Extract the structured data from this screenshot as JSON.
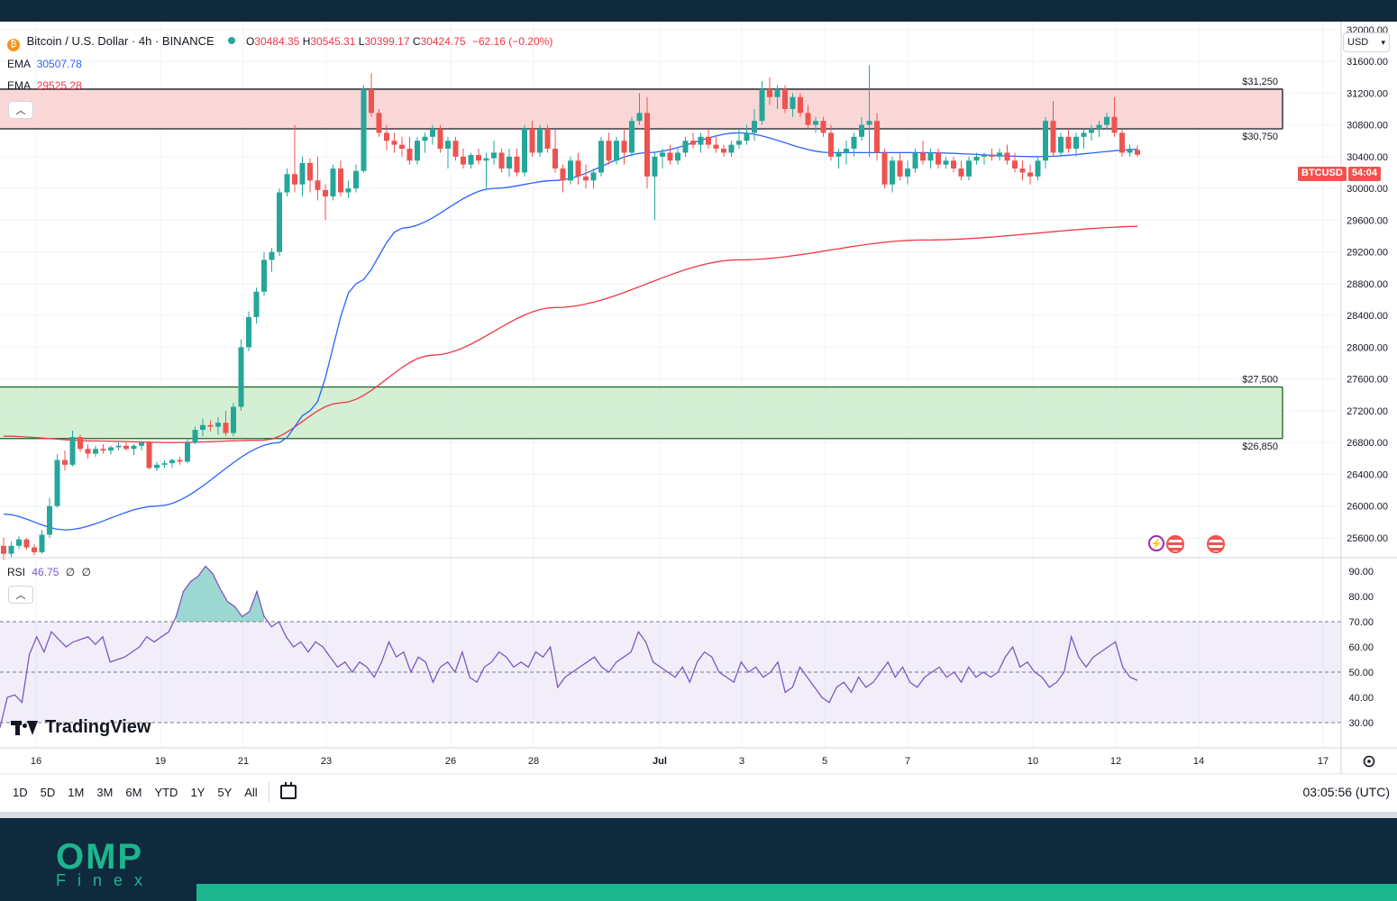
{
  "header": {
    "symbol_title": "Bitcoin / U.S. Dollar · 4h · BINANCE",
    "ohlc": {
      "o_label": "O",
      "o_value": "30484.35",
      "h_label": "H",
      "h_value": "30545.31",
      "l_label": "L",
      "l_value": "30399.17",
      "c_label": "C",
      "c_value": "30424.75",
      "change": "−62.16 (−0.20%)"
    },
    "ema_fast_label": "EMA",
    "ema_fast_value": "30507.78",
    "ema_slow_label": "EMA",
    "ema_slow_value": "29525.28"
  },
  "rsi_legend": {
    "label": "RSI",
    "value": "46.75",
    "extra1": "∅",
    "extra2": "∅"
  },
  "currency": "USD",
  "price_tag": {
    "symbol": "BTCUSD",
    "timer": "54:04"
  },
  "timeframes": [
    "1D",
    "5D",
    "1M",
    "3M",
    "6M",
    "YTD",
    "1Y",
    "5Y",
    "All"
  ],
  "clock": "03:05:56 (UTC)",
  "branding": {
    "tradingview": "TradingView",
    "footer_logo": "OMP",
    "footer_sub": "Finex"
  },
  "colors": {
    "up": "#26a69a",
    "down": "#ef5350",
    "ema_fast": "#2962ff",
    "ema_slow": "#f23645",
    "resistance_fill": "#f9d0d0",
    "support_fill": "#cdeccd",
    "rsi": "#7e57c2",
    "brand": "#1cb68e"
  },
  "chart_data": {
    "type": "candlestick",
    "title": "Bitcoin / U.S. Dollar · 4h · BINANCE",
    "y_ticks": [
      "32000.00",
      "31600.00",
      "31200.00",
      "30800.00",
      "30400.00",
      "30000.00",
      "29600.00",
      "29200.00",
      "28800.00",
      "28400.00",
      "28000.00",
      "27600.00",
      "27200.00",
      "26800.00",
      "26400.00",
      "26000.00",
      "25600.00"
    ],
    "x_ticks": [
      "16",
      "19",
      "21",
      "23",
      "26",
      "28",
      "Jul",
      "3",
      "5",
      "7",
      "10",
      "12",
      "14",
      "17"
    ],
    "zones": [
      {
        "name": "resistance",
        "low": 30750,
        "high": 31250,
        "low_label": "$30,750",
        "high_label": "$31,250"
      },
      {
        "name": "support",
        "low": 26850,
        "high": 27500,
        "low_label": "$26,850",
        "high_label": "$27,500"
      }
    ],
    "candles": [
      [
        25500,
        25600,
        25320,
        25400
      ],
      [
        25400,
        25550,
        25350,
        25500
      ],
      [
        25500,
        25620,
        25460,
        25580
      ],
      [
        25580,
        25600,
        25450,
        25480
      ],
      [
        25480,
        25520,
        25380,
        25420
      ],
      [
        25420,
        25700,
        25400,
        25640
      ],
      [
        25640,
        26100,
        25600,
        26000
      ],
      [
        26000,
        26650,
        25980,
        26580
      ],
      [
        26580,
        26700,
        26450,
        26520
      ],
      [
        26520,
        26950,
        26500,
        26870
      ],
      [
        26870,
        26900,
        26680,
        26720
      ],
      [
        26720,
        26780,
        26600,
        26660
      ],
      [
        26660,
        26760,
        26620,
        26720
      ],
      [
        26720,
        26780,
        26660,
        26700
      ],
      [
        26700,
        26760,
        26650,
        26740
      ],
      [
        26740,
        26800,
        26700,
        26760
      ],
      [
        26760,
        26800,
        26700,
        26720
      ],
      [
        26720,
        26780,
        26640,
        26760
      ],
      [
        26760,
        26820,
        26700,
        26800
      ],
      [
        26800,
        26820,
        26460,
        26480
      ],
      [
        26480,
        26560,
        26440,
        26520
      ],
      [
        26520,
        26580,
        26480,
        26540
      ],
      [
        26540,
        26600,
        26480,
        26580
      ],
      [
        26580,
        26620,
        26520,
        26560
      ],
      [
        26560,
        26840,
        26540,
        26800
      ],
      [
        26800,
        27000,
        26780,
        26960
      ],
      [
        26960,
        27100,
        26880,
        27020
      ],
      [
        27020,
        27080,
        26940,
        27000
      ],
      [
        27000,
        27120,
        26900,
        27050
      ],
      [
        27050,
        27200,
        26880,
        26920
      ],
      [
        26920,
        27300,
        26880,
        27250
      ],
      [
        27250,
        28100,
        27200,
        28000
      ],
      [
        28000,
        28450,
        27950,
        28380
      ],
      [
        28380,
        28750,
        28300,
        28700
      ],
      [
        28700,
        29200,
        28650,
        29100
      ],
      [
        29100,
        29250,
        28950,
        29200
      ],
      [
        29200,
        30000,
        29150,
        29950
      ],
      [
        29950,
        30250,
        29900,
        30180
      ],
      [
        30180,
        30800,
        29950,
        30050
      ],
      [
        30050,
        30400,
        29900,
        30320
      ],
      [
        30320,
        30380,
        29950,
        30100
      ],
      [
        30100,
        30400,
        29850,
        29980
      ],
      [
        29980,
        30050,
        29600,
        29900
      ],
      [
        29900,
        30300,
        29850,
        30250
      ],
      [
        30250,
        30350,
        29900,
        29950
      ],
      [
        29950,
        30100,
        29880,
        30000
      ],
      [
        30000,
        30300,
        29950,
        30220
      ],
      [
        30220,
        31300,
        30200,
        31250
      ],
      [
        31250,
        31450,
        30900,
        30950
      ],
      [
        30950,
        31000,
        30650,
        30700
      ],
      [
        30700,
        30800,
        30480,
        30600
      ],
      [
        30600,
        30700,
        30450,
        30550
      ],
      [
        30550,
        30650,
        30400,
        30500
      ],
      [
        30500,
        30650,
        30300,
        30350
      ],
      [
        30350,
        30650,
        30300,
        30600
      ],
      [
        30600,
        30700,
        30450,
        30650
      ],
      [
        30650,
        30800,
        30550,
        30750
      ],
      [
        30750,
        30800,
        30450,
        30500
      ],
      [
        30500,
        30650,
        30250,
        30600
      ],
      [
        30600,
        30650,
        30350,
        30400
      ],
      [
        30400,
        30500,
        30250,
        30300
      ],
      [
        30300,
        30450,
        30250,
        30420
      ],
      [
        30420,
        30500,
        30300,
        30350
      ],
      [
        30350,
        30450,
        30000,
        30380
      ],
      [
        30380,
        30600,
        30300,
        30450
      ],
      [
        30450,
        30500,
        30200,
        30250
      ],
      [
        30250,
        30500,
        30150,
        30400
      ],
      [
        30400,
        30500,
        30150,
        30200
      ],
      [
        30200,
        30800,
        30150,
        30750
      ],
      [
        30750,
        30850,
        30400,
        30450
      ],
      [
        30450,
        30800,
        30400,
        30750
      ],
      [
        30750,
        30800,
        30450,
        30500
      ],
      [
        30500,
        30750,
        30200,
        30250
      ],
      [
        30250,
        30300,
        29950,
        30100
      ],
      [
        30100,
        30400,
        30050,
        30350
      ],
      [
        30350,
        30450,
        30050,
        30150
      ],
      [
        30150,
        30300,
        30000,
        30100
      ],
      [
        30100,
        30250,
        30000,
        30200
      ],
      [
        30200,
        30650,
        30150,
        30600
      ],
      [
        30600,
        30700,
        30300,
        30350
      ],
      [
        30350,
        30650,
        30300,
        30600
      ],
      [
        30600,
        30750,
        30300,
        30450
      ],
      [
        30450,
        30900,
        30400,
        30850
      ],
      [
        30850,
        31200,
        30800,
        30950
      ],
      [
        30950,
        31150,
        30000,
        30150
      ],
      [
        30150,
        30450,
        29600,
        30400
      ],
      [
        30400,
        30500,
        30250,
        30450
      ],
      [
        30450,
        30550,
        30300,
        30350
      ],
      [
        30350,
        30500,
        30300,
        30450
      ],
      [
        30450,
        30650,
        30400,
        30600
      ],
      [
        30600,
        30700,
        30500,
        30550
      ],
      [
        30550,
        30700,
        30450,
        30650
      ],
      [
        30650,
        30750,
        30500,
        30550
      ],
      [
        30550,
        30650,
        30450,
        30500
      ],
      [
        30500,
        30550,
        30400,
        30450
      ],
      [
        30450,
        30600,
        30400,
        30550
      ],
      [
        30550,
        30750,
        30500,
        30600
      ],
      [
        30600,
        30800,
        30550,
        30700
      ],
      [
        30700,
        31000,
        30600,
        30850
      ],
      [
        30850,
        31350,
        30800,
        31250
      ],
      [
        31250,
        31400,
        31050,
        31150
      ],
      [
        31150,
        31300,
        31000,
        31250
      ],
      [
        31250,
        31300,
        30950,
        31000
      ],
      [
        31000,
        31200,
        30900,
        31150
      ],
      [
        31150,
        31200,
        30900,
        30950
      ],
      [
        30950,
        31050,
        30750,
        30800
      ],
      [
        30800,
        30900,
        30700,
        30850
      ],
      [
        30850,
        30900,
        30650,
        30700
      ],
      [
        30700,
        30800,
        30350,
        30400
      ],
      [
        30400,
        30500,
        30250,
        30450
      ],
      [
        30450,
        30600,
        30300,
        30500
      ],
      [
        30500,
        30700,
        30400,
        30650
      ],
      [
        30650,
        30900,
        30600,
        30800
      ],
      [
        30800,
        31550,
        30400,
        30850
      ],
      [
        30850,
        30950,
        30350,
        30450
      ],
      [
        30450,
        30500,
        30000,
        30050
      ],
      [
        30050,
        30400,
        29950,
        30350
      ],
      [
        30350,
        30450,
        30100,
        30150
      ],
      [
        30150,
        30350,
        30050,
        30250
      ],
      [
        30250,
        30500,
        30200,
        30450
      ],
      [
        30450,
        30600,
        30300,
        30350
      ],
      [
        30350,
        30500,
        30250,
        30450
      ],
      [
        30450,
        30500,
        30250,
        30300
      ],
      [
        30300,
        30400,
        30250,
        30350
      ],
      [
        30350,
        30400,
        30200,
        30250
      ],
      [
        30250,
        30350,
        30100,
        30150
      ],
      [
        30150,
        30400,
        30100,
        30350
      ],
      [
        30350,
        30450,
        30300,
        30400
      ],
      [
        30400,
        30450,
        30300,
        30420
      ],
      [
        30420,
        30500,
        30350,
        30400
      ],
      [
        30400,
        30500,
        30350,
        30450
      ],
      [
        30450,
        30550,
        30300,
        30350
      ],
      [
        30350,
        30450,
        30200,
        30250
      ],
      [
        30250,
        30350,
        30100,
        30200
      ],
      [
        30200,
        30300,
        30050,
        30150
      ],
      [
        30150,
        30400,
        30100,
        30350
      ],
      [
        30350,
        30900,
        30250,
        30850
      ],
      [
        30850,
        31100,
        30400,
        30450
      ],
      [
        30450,
        30700,
        30400,
        30650
      ],
      [
        30650,
        30750,
        30450,
        30500
      ],
      [
        30500,
        30700,
        30400,
        30650
      ],
      [
        30650,
        30750,
        30500,
        30700
      ],
      [
        30700,
        30800,
        30600,
        30750
      ],
      [
        30750,
        30850,
        30650,
        30800
      ],
      [
        30800,
        30950,
        30750,
        30900
      ],
      [
        30900,
        31150,
        30650,
        30700
      ],
      [
        30700,
        30750,
        30400,
        30450
      ],
      [
        30450,
        30550,
        30400,
        30500
      ],
      [
        30484.35,
        30545.31,
        30399.17,
        30424.75
      ]
    ],
    "ema_fast": [
      [
        0,
        25900
      ],
      [
        8,
        25700
      ],
      [
        20,
        26000
      ],
      [
        36,
        26800
      ],
      [
        40,
        27200
      ],
      [
        46,
        28800
      ],
      [
        52,
        29500
      ],
      [
        64,
        30000
      ],
      [
        72,
        30100
      ],
      [
        84,
        30450
      ],
      [
        96,
        30700
      ],
      [
        108,
        30450
      ],
      [
        120,
        30450
      ],
      [
        135,
        30400
      ],
      [
        150,
        30500
      ]
    ],
    "ema_slow": [
      [
        0,
        26880
      ],
      [
        12,
        26820
      ],
      [
        22,
        26800
      ],
      [
        34,
        26830
      ],
      [
        44,
        27300
      ],
      [
        56,
        27900
      ],
      [
        72,
        28500
      ],
      [
        96,
        29100
      ],
      [
        120,
        29350
      ],
      [
        150,
        29525
      ]
    ],
    "rsi": {
      "ylim": [
        20,
        95
      ],
      "y_ticks": [
        "90.00",
        "80.00",
        "70.00",
        "60.00",
        "50.00",
        "40.00",
        "30.00"
      ],
      "overbought": 70,
      "oversold": 30,
      "values": [
        28,
        40,
        41,
        38,
        57,
        64,
        58,
        66,
        63,
        60,
        62,
        63,
        64,
        61,
        64,
        54,
        55,
        56,
        58,
        60,
        64,
        62,
        64,
        66,
        72,
        82,
        86,
        88,
        92,
        89,
        83,
        78,
        76,
        72,
        74,
        82,
        72,
        68,
        70,
        64,
        60,
        62,
        58,
        62,
        60,
        56,
        52,
        54,
        50,
        54,
        52,
        48,
        54,
        62,
        56,
        58,
        50,
        56,
        54,
        46,
        52,
        54,
        50,
        58,
        48,
        46,
        52,
        54,
        58,
        56,
        52,
        54,
        52,
        58,
        56,
        60,
        44,
        48,
        50,
        52,
        54,
        56,
        52,
        50,
        54,
        56,
        58,
        66,
        62,
        54,
        52,
        50,
        48,
        52,
        46,
        54,
        58,
        56,
        50,
        48,
        46,
        54,
        50,
        52,
        48,
        50,
        54,
        42,
        44,
        52,
        48,
        44,
        40,
        38,
        44,
        46,
        42,
        48,
        44,
        46,
        50,
        54,
        48,
        52,
        46,
        44,
        48,
        50,
        52,
        48,
        50,
        46,
        52,
        48,
        50,
        48,
        50,
        56,
        60,
        52,
        54,
        50,
        48,
        44,
        46,
        50,
        64,
        56,
        52,
        56,
        58,
        60,
        62,
        52,
        48,
        46.75
      ]
    }
  }
}
